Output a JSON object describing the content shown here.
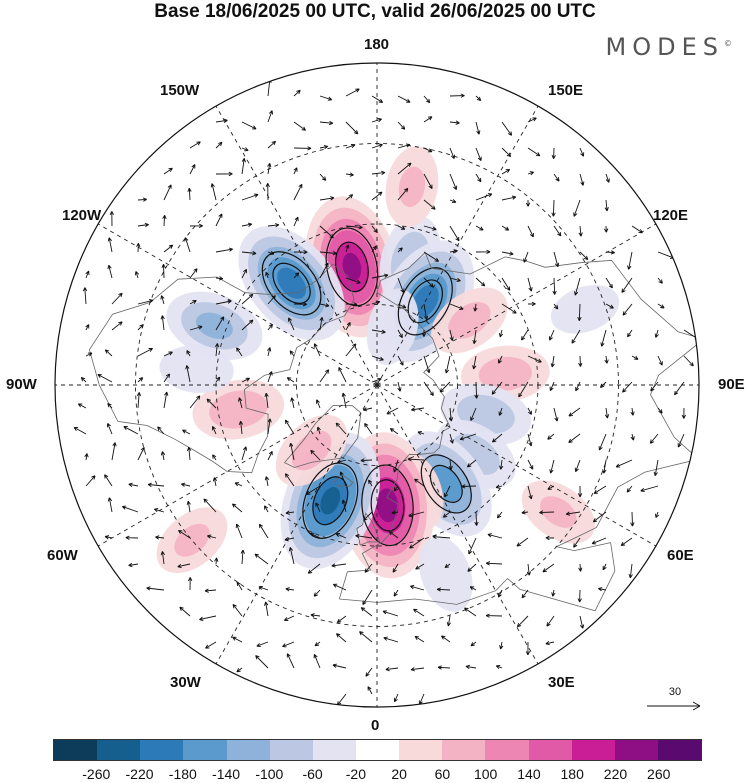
{
  "title": "Base 18/06/2025 00 UTC, valid 26/06/2025 00 UTC",
  "brand": "MODES",
  "brand_mark": "©",
  "longitude_labels": {
    "top": "180",
    "bottom": "0",
    "left": "90W",
    "right": "90E",
    "upper_left_1": "150W",
    "upper_left_2": "120W",
    "lower_left_1": "60W",
    "lower_left_2": "30W",
    "upper_right_1": "150E",
    "upper_right_2": "120E",
    "lower_right_1": "60E",
    "lower_right_2": "30E"
  },
  "reference_vector_label": "30",
  "colorbar": {
    "colors": [
      "#0d3b5a",
      "#155f8f",
      "#2d7ab8",
      "#5a9acc",
      "#8eb2d9",
      "#bcc8e3",
      "#e3e3f2",
      "#ffffff",
      "#f8dadb",
      "#f4b3c4",
      "#ee86b3",
      "#e05aa8",
      "#c91e95",
      "#8e0f84",
      "#5a0a6e"
    ],
    "labels": [
      "-260",
      "-220",
      "-180",
      "-140",
      "-100",
      "-60",
      "-20",
      "20",
      "60",
      "100",
      "140",
      "180",
      "220",
      "260"
    ]
  },
  "anomaly_centres": [
    {
      "lon": -168,
      "lat": 60,
      "value": 230
    },
    {
      "lon": -140,
      "lat": 57,
      "value": -200
    },
    {
      "lon": -110,
      "lat": 47,
      "value": -110
    },
    {
      "lon": 165,
      "lat": 58,
      "value": -90
    },
    {
      "lon": 150,
      "lat": 66,
      "value": -200
    },
    {
      "lon": 125,
      "lat": 62,
      "value": 70
    },
    {
      "lon": 170,
      "lat": 40,
      "value": 60
    },
    {
      "lon": 95,
      "lat": 58,
      "value": 80
    },
    {
      "lon": 75,
      "lat": 62,
      "value": -90
    },
    {
      "lon": 55,
      "lat": 60,
      "value": -80
    },
    {
      "lon": 35,
      "lat": 60,
      "value": -160
    },
    {
      "lon": 20,
      "lat": 62,
      "value": 60
    },
    {
      "lon": 5,
      "lat": 60,
      "value": 240
    },
    {
      "lon": -22,
      "lat": 59,
      "value": -230
    },
    {
      "lon": -45,
      "lat": 67,
      "value": 70
    },
    {
      "lon": -80,
      "lat": 55,
      "value": 90
    },
    {
      "lon": -95,
      "lat": 45,
      "value": -40
    },
    {
      "lon": 55,
      "lat": 35,
      "value": 60
    },
    {
      "lon": -50,
      "lat": 30,
      "value": 60
    },
    {
      "lon": 20,
      "lat": 40,
      "value": -50
    },
    {
      "lon": 110,
      "lat": 35,
      "value": -30
    },
    {
      "lon": 165,
      "lat": 75,
      "value": -50
    }
  ]
}
